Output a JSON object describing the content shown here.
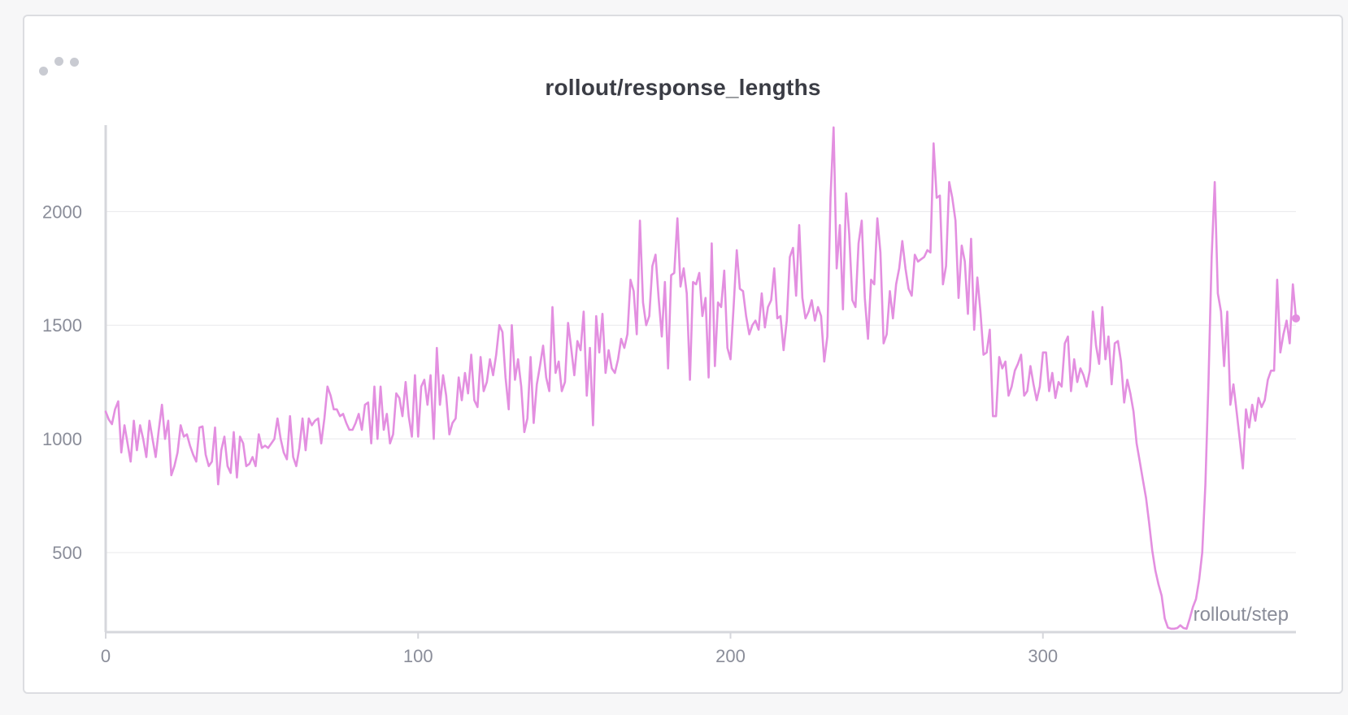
{
  "panel": {
    "title": "rollout/response_lengths",
    "menu_icon": "drag-dots-icon"
  },
  "colors": {
    "series": "#e38fe0",
    "grid": "#e9e9ec",
    "axis": "#d6d7dc",
    "tick_text": "#8a8d99"
  },
  "chart_data": {
    "type": "line",
    "title": "rollout/response_lengths",
    "xlabel": "rollout/step",
    "ylabel": "",
    "xlim": [
      0,
      381
    ],
    "ylim": [
      150,
      2380
    ],
    "xticks": [
      0,
      100,
      200,
      300
    ],
    "yticks": [
      500,
      1000,
      1500,
      2000
    ],
    "grid": true,
    "legend": "none",
    "series": [
      {
        "name": "",
        "color": "#e38fe0",
        "x": [
          0,
          1,
          2,
          3,
          4,
          5,
          6,
          7,
          8,
          9,
          10,
          11,
          12,
          13,
          14,
          15,
          16,
          17,
          18,
          19,
          20,
          21,
          22,
          23,
          24,
          25,
          26,
          27,
          28,
          29,
          30,
          31,
          32,
          33,
          34,
          35,
          36,
          37,
          38,
          39,
          40,
          41,
          42,
          43,
          44,
          45,
          46,
          47,
          48,
          49,
          50,
          51,
          52,
          53,
          54,
          55,
          56,
          57,
          58,
          59,
          60,
          61,
          62,
          63,
          64,
          65,
          66,
          67,
          68,
          69,
          70,
          71,
          72,
          73,
          74,
          75,
          76,
          77,
          78,
          79,
          80,
          81,
          82,
          83,
          84,
          85,
          86,
          87,
          88,
          89,
          90,
          91,
          92,
          93,
          94,
          95,
          96,
          97,
          98,
          99,
          100,
          101,
          102,
          103,
          104,
          105,
          106,
          107,
          108,
          109,
          110,
          111,
          112,
          113,
          114,
          115,
          116,
          117,
          118,
          119,
          120,
          121,
          122,
          123,
          124,
          125,
          126,
          127,
          128,
          129,
          130,
          131,
          132,
          133,
          134,
          135,
          136,
          137,
          138,
          139,
          140,
          141,
          142,
          143,
          144,
          145,
          146,
          147,
          148,
          149,
          150,
          151,
          152,
          153,
          154,
          155,
          156,
          157,
          158,
          159,
          160,
          161,
          162,
          163,
          164,
          165,
          166,
          167,
          168,
          169,
          170,
          171,
          172,
          173,
          174,
          175,
          176,
          177,
          178,
          179,
          180,
          181,
          182,
          183,
          184,
          185,
          186,
          187,
          188,
          189,
          190,
          191,
          192,
          193,
          194,
          195,
          196,
          197,
          198,
          199,
          200,
          201,
          202,
          203,
          204,
          205,
          206,
          207,
          208,
          209,
          210,
          211,
          212,
          213,
          214,
          215,
          216,
          217,
          218,
          219,
          220,
          221,
          222,
          223,
          224,
          225,
          226,
          227,
          228,
          229,
          230,
          231,
          232,
          233,
          234,
          235,
          236,
          237,
          238,
          239,
          240,
          241,
          242,
          243,
          244,
          245,
          246,
          247,
          248,
          249,
          250,
          251,
          252,
          253,
          254,
          255,
          256,
          257,
          258,
          259,
          260,
          261,
          262,
          263,
          264,
          265,
          266,
          267,
          268,
          269,
          270,
          271,
          272,
          273,
          274,
          275,
          276,
          277,
          278,
          279,
          280,
          281,
          282,
          283,
          284,
          285,
          286,
          287,
          288,
          289,
          290,
          291,
          292,
          293,
          294,
          295,
          296,
          297,
          298,
          299,
          300,
          301,
          302,
          303,
          304,
          305,
          306,
          307,
          308,
          309,
          310,
          311,
          312,
          313,
          314,
          315,
          316,
          317,
          318,
          319,
          320,
          321,
          322,
          323,
          324,
          325,
          326,
          327,
          328,
          329,
          330,
          331,
          332,
          333,
          334,
          335,
          336,
          337,
          338,
          339,
          340,
          341,
          342,
          343,
          344,
          345,
          346,
          347,
          348,
          349,
          350,
          351,
          352,
          353,
          354,
          355,
          356,
          357,
          358,
          359,
          360,
          361,
          362,
          363,
          364,
          365,
          366,
          367,
          368,
          369,
          370,
          371,
          372,
          373,
          374,
          375,
          376,
          377,
          378,
          379,
          380,
          381
        ],
        "y": [
          1120,
          1085,
          1065,
          1130,
          1165,
          940,
          1060,
          980,
          900,
          1080,
          950,
          1060,
          1000,
          920,
          1080,
          1000,
          920,
          1040,
          1150,
          1000,
          1080,
          840,
          880,
          940,
          1060,
          1010,
          1020,
          970,
          930,
          900,
          1050,
          1055,
          930,
          880,
          900,
          1050,
          800,
          950,
          1010,
          880,
          850,
          1030,
          830,
          1010,
          980,
          880,
          890,
          920,
          880,
          1020,
          960,
          970,
          960,
          980,
          1000,
          1090,
          1000,
          940,
          910,
          1100,
          920,
          880,
          960,
          1090,
          950,
          1090,
          1060,
          1080,
          1090,
          980,
          1090,
          1230,
          1190,
          1130,
          1130,
          1100,
          1110,
          1070,
          1040,
          1040,
          1070,
          1110,
          1040,
          1150,
          1160,
          980,
          1230,
          1000,
          1230,
          1040,
          1110,
          980,
          1020,
          1200,
          1180,
          1100,
          1250,
          1100,
          1010,
          1280,
          1010,
          1230,
          1260,
          1150,
          1280,
          1000,
          1400,
          1150,
          1280,
          1190,
          1020,
          1070,
          1090,
          1270,
          1170,
          1290,
          1200,
          1370,
          1170,
          1140,
          1360,
          1210,
          1250,
          1350,
          1280,
          1370,
          1500,
          1470,
          1270,
          1130,
          1500,
          1260,
          1350,
          1230,
          1030,
          1090,
          1360,
          1070,
          1240,
          1320,
          1410,
          1270,
          1210,
          1580,
          1290,
          1340,
          1210,
          1250,
          1510,
          1400,
          1280,
          1430,
          1390,
          1560,
          1190,
          1400,
          1060,
          1540,
          1380,
          1550,
          1290,
          1390,
          1310,
          1290,
          1350,
          1440,
          1400,
          1460,
          1700,
          1650,
          1460,
          1960,
          1600,
          1500,
          1540,
          1760,
          1810,
          1620,
          1450,
          1690,
          1310,
          1720,
          1730,
          1970,
          1670,
          1750,
          1640,
          1260,
          1690,
          1680,
          1730,
          1540,
          1620,
          1270,
          1860,
          1320,
          1600,
          1580,
          1740,
          1400,
          1350,
          1580,
          1830,
          1660,
          1650,
          1540,
          1460,
          1500,
          1520,
          1480,
          1640,
          1490,
          1580,
          1610,
          1750,
          1530,
          1540,
          1390,
          1520,
          1800,
          1840,
          1630,
          1940,
          1620,
          1530,
          1560,
          1610,
          1520,
          1580,
          1540,
          1340,
          1450,
          2060,
          2370,
          1750,
          1940,
          1570,
          2080,
          1900,
          1610,
          1580,
          1860,
          1960,
          1620,
          1440,
          1700,
          1680,
          1970,
          1820,
          1420,
          1460,
          1650,
          1530,
          1680,
          1750,
          1870,
          1750,
          1660,
          1630,
          1810,
          1780,
          1790,
          1800,
          1830,
          1820,
          2300,
          2060,
          2070,
          1680,
          1760,
          2130,
          2060,
          1960,
          1620,
          1850,
          1780,
          1550,
          1880,
          1480,
          1710,
          1560,
          1370,
          1380,
          1480,
          1100,
          1100,
          1360,
          1310,
          1340,
          1190,
          1230,
          1300,
          1330,
          1370,
          1190,
          1210,
          1320,
          1240,
          1170,
          1230,
          1380,
          1380,
          1210,
          1290,
          1180,
          1250,
          1230,
          1420,
          1450,
          1210,
          1350,
          1250,
          1310,
          1280,
          1230,
          1300,
          1560,
          1410,
          1330,
          1580,
          1350,
          1450,
          1240,
          1420,
          1430,
          1340,
          1160,
          1260,
          1200,
          1120,
          980,
          900,
          820,
          740,
          630,
          510,
          420,
          360,
          310,
          210,
          170,
          165,
          165,
          168,
          180,
          168,
          165,
          210,
          260,
          295,
          380,
          500,
          800,
          1250,
          1800,
          2130,
          1640,
          1560,
          1320,
          1560,
          1150,
          1240,
          1120,
          1000,
          870,
          1130,
          1050,
          1150,
          1080,
          1180,
          1140,
          1170,
          1260,
          1300,
          1300,
          1700,
          1380,
          1460,
          1520,
          1420,
          1680,
          1530
        ]
      }
    ]
  }
}
